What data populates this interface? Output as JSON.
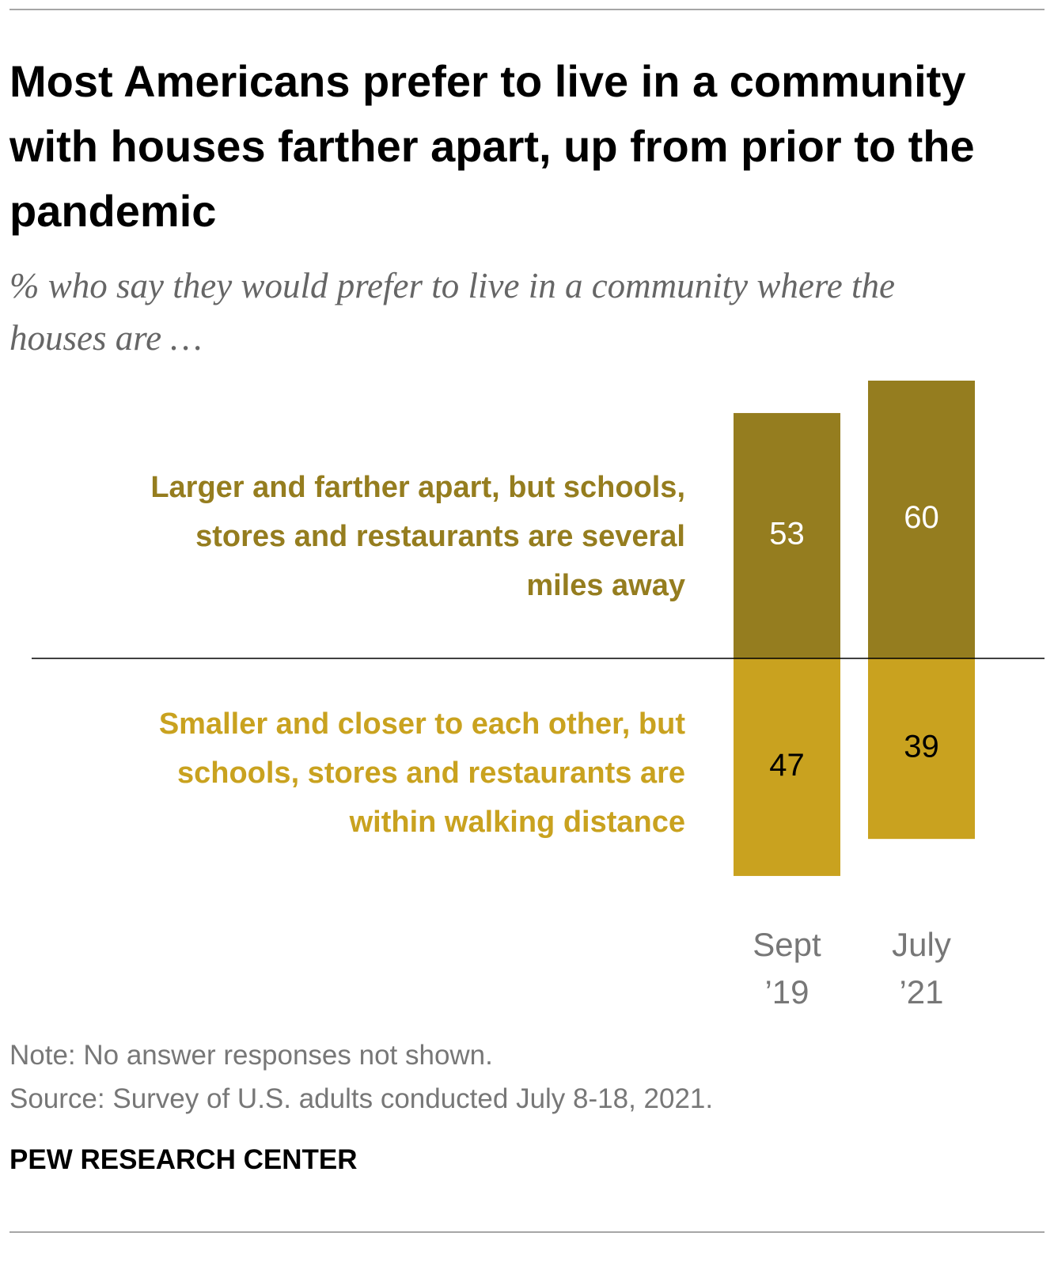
{
  "chart_data": {
    "type": "diverging_bar",
    "title": "Most Americans prefer to live in a community with houses farther apart, up from prior to the pandemic",
    "subtitle": "% who say they would prefer to live in a community where the houses are …",
    "categories": [
      [
        "Sept",
        "’19"
      ],
      [
        "July",
        "’21"
      ]
    ],
    "series": [
      {
        "name": "Larger and farther apart, but schools, stores and restaurants are several miles away",
        "color": "#957d1f",
        "label_color": "#ffffff",
        "direction": "up",
        "values": [
          53,
          60
        ]
      },
      {
        "name": "Smaller and closer to each other, but schools, stores and restaurants are within walking distance",
        "color": "#c9a21f",
        "label_color": "#000000",
        "direction": "down",
        "values": [
          47,
          39
        ]
      }
    ],
    "note": "Note: No answer responses not shown.",
    "source": "Source: Survey of U.S. adults conducted July 8-18, 2021.",
    "credit": "PEW RESEARCH CENTER"
  }
}
